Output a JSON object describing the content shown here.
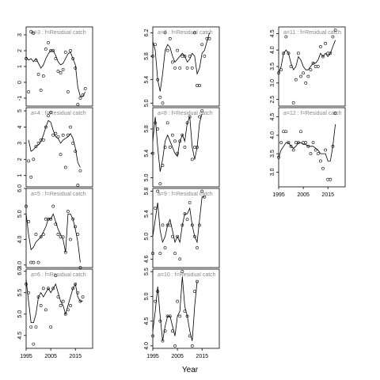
{
  "xlabel": "Year",
  "chart_data": [
    {
      "type": "scatter",
      "title": "a=3 : f=Residual catch",
      "xlim": [
        1995,
        2022
      ],
      "ylim": [
        -1.5,
        3.5
      ],
      "yticks": [
        -1,
        0,
        1,
        2,
        3
      ],
      "x": [
        1995,
        1996,
        1997,
        1998,
        1999,
        2000,
        2001,
        2002,
        2003,
        2004,
        2005,
        2006,
        2007,
        2008,
        2009,
        2010,
        2011,
        2012,
        2013,
        2014,
        2015,
        2016,
        2017,
        2018,
        2019,
        2020
      ],
      "points": [
        1.5,
        -0.6,
        3.2,
        3.1,
        1.4,
        0.5,
        -0.5,
        0.4,
        2.1,
        2.5,
        2.0,
        2.0,
        1.5,
        0.7,
        0.6,
        0.8,
        1.9,
        -0.6,
        2.0,
        1.5,
        0.9,
        -1.4,
        -1.0,
        -0.8,
        -0.4,
        null
      ],
      "fit": [
        1.6,
        1.4,
        1.5,
        1.3,
        1.5,
        1.2,
        0.9,
        1.1,
        1.5,
        1.8,
        2.0,
        2.0,
        1.7,
        1.3,
        1.1,
        1.2,
        1.5,
        1.8,
        1.9,
        1.5,
        1.1,
        -0.3,
        -0.9,
        -0.9,
        -0.6,
        null
      ]
    },
    {
      "type": "scatter",
      "title": "a=7 : f=Residual catch",
      "xlim": [
        1995,
        2022
      ],
      "ylim": [
        4.95,
        6.3
      ],
      "yticks": [
        5.0,
        5.4,
        5.8,
        6.2
      ],
      "x": [
        1995,
        1996,
        1997,
        1998,
        1999,
        2000,
        2001,
        2002,
        2003,
        2004,
        2005,
        2006,
        2007,
        2008,
        2009,
        2010,
        2011,
        2012,
        2013,
        2014,
        2015,
        2016,
        2017,
        2018,
        2019,
        2020
      ],
      "points": [
        5.8,
        6.0,
        5.4,
        5.1,
        5.0,
        6.2,
        5.9,
        6.1,
        5.7,
        5.6,
        5.9,
        5.6,
        5.8,
        5.8,
        5.6,
        5.8,
        5.6,
        6.2,
        5.3,
        5.3,
        6.0,
        5.8,
        6.1,
        6.1,
        null,
        null
      ],
      "fit": [
        6.05,
        5.9,
        5.4,
        5.2,
        5.5,
        5.9,
        6.0,
        5.95,
        5.8,
        5.7,
        5.75,
        5.8,
        5.85,
        5.8,
        5.7,
        5.75,
        5.85,
        5.8,
        5.5,
        5.6,
        5.85,
        5.9,
        6.05,
        6.2,
        null,
        null
      ]
    },
    {
      "type": "scatter",
      "title": "a=11 : f=Residual catch",
      "xlim": [
        1995,
        2022
      ],
      "ylim": [
        2.3,
        4.7
      ],
      "yticks": [
        2.5,
        3.0,
        3.5,
        4.0,
        4.5
      ],
      "x": [
        1995,
        1996,
        1997,
        1998,
        1999,
        2000,
        2001,
        2002,
        2003,
        2004,
        2005,
        2006,
        2007,
        2008,
        2009,
        2010,
        2011,
        2012,
        2013,
        2014,
        2015,
        2016,
        2017,
        2018,
        2019,
        2020
      ],
      "points": [
        3.3,
        3.4,
        3.9,
        4.4,
        3.9,
        3.5,
        2.4,
        3.1,
        3.9,
        3.2,
        3.3,
        3.0,
        3.2,
        3.4,
        3.6,
        3.5,
        3.5,
        4.1,
        3.8,
        4.2,
        3.9,
        3.9,
        4.4,
        4.6,
        null,
        null
      ],
      "fit": [
        3.3,
        3.5,
        3.9,
        4.0,
        3.9,
        3.6,
        3.4,
        3.5,
        3.8,
        3.7,
        3.5,
        3.4,
        3.4,
        3.5,
        3.6,
        3.6,
        3.7,
        3.9,
        3.8,
        3.9,
        3.8,
        3.9,
        4.1,
        4.3,
        null,
        null
      ]
    },
    {
      "type": "scatter",
      "title": "a=4 : f=Residual catch",
      "xlim": [
        1995,
        2022
      ],
      "ylim": [
        0.3,
        5.2
      ],
      "yticks": [
        1,
        2,
        3,
        4,
        5
      ],
      "x": [
        1995,
        1996,
        1997,
        1998,
        1999,
        2000,
        2001,
        2002,
        2003,
        2004,
        2005,
        2006,
        2007,
        2008,
        2009,
        2010,
        2011,
        2012,
        2013,
        2014,
        2015,
        2016,
        2017,
        2018,
        2019,
        2020
      ],
      "points": [
        null,
        1.9,
        0.9,
        2.0,
        2.8,
        3.0,
        3.2,
        3.2,
        4.0,
        4.7,
        4.9,
        3.5,
        3.6,
        3.4,
        2.3,
        3.5,
        1.5,
        3.5,
        4.0,
        3.0,
        2.5,
        0.4,
        1.3,
        null,
        null,
        null
      ],
      "fit": [
        null,
        3.2,
        2.5,
        2.6,
        2.8,
        2.9,
        3.1,
        3.5,
        4.0,
        4.4,
        4.3,
        3.8,
        3.4,
        3.3,
        3.0,
        3.2,
        3.3,
        3.4,
        3.6,
        3.3,
        2.7,
        1.8,
        1.5,
        null,
        null,
        null
      ]
    },
    {
      "type": "scatter",
      "title": "a=8 : f=Residual catch",
      "xlim": [
        1995,
        2022
      ],
      "ylim": [
        4.85,
        6.15
      ],
      "yticks": [
        5.0,
        5.4,
        5.8
      ],
      "x": [
        1995,
        1996,
        1997,
        1998,
        1999,
        2000,
        2001,
        2002,
        2003,
        2004,
        2005,
        2006,
        2007,
        2008,
        2009,
        2010,
        2011,
        2012,
        2013,
        2014,
        2015,
        2016,
        2017,
        2018,
        2019,
        2020
      ],
      "points": [
        5.4,
        5.9,
        5.8,
        4.9,
        5.2,
        5.5,
        5.9,
        5.5,
        5.7,
        5.6,
        5.4,
        5.6,
        5.7,
        5.5,
        5.9,
        6.0,
        5.3,
        5.5,
        5.5,
        6.0,
        6.1,
        null,
        null,
        null,
        null,
        null
      ],
      "fit": [
        5.6,
        6.0,
        5.5,
        5.1,
        5.3,
        5.6,
        5.7,
        5.6,
        5.5,
        5.4,
        5.35,
        5.6,
        5.7,
        5.6,
        5.9,
        6.0,
        5.5,
        5.3,
        5.5,
        5.9,
        6.05,
        null,
        null,
        null,
        null,
        null
      ]
    },
    {
      "type": "scatter",
      "title": "a=12 : f=Residual catch",
      "xlim": [
        1995,
        2022
      ],
      "ylim": [
        2.6,
        4.75
      ],
      "yticks": [
        3.0,
        3.5,
        4.0,
        4.5
      ],
      "x": [
        1995,
        1996,
        1997,
        1998,
        1999,
        2000,
        2001,
        2002,
        2003,
        2004,
        2005,
        2006,
        2007,
        2008,
        2009,
        2010,
        2011,
        2012,
        2013,
        2014,
        2015,
        2016,
        2017,
        2018,
        2019,
        2020
      ],
      "points": [
        3.4,
        3.8,
        4.1,
        4.1,
        3.8,
        3.7,
        3.6,
        3.8,
        3.8,
        4.1,
        3.8,
        3.8,
        3.7,
        3.5,
        3.8,
        3.6,
        3.5,
        3.3,
        3.1,
        3.6,
        2.8,
        2.8,
        3.7,
        4.6,
        null,
        null
      ],
      "fit": [
        3.4,
        3.6,
        3.7,
        3.8,
        3.8,
        3.7,
        3.65,
        3.7,
        3.8,
        3.8,
        3.75,
        3.75,
        3.7,
        3.7,
        3.7,
        3.65,
        3.6,
        3.5,
        3.5,
        3.5,
        3.3,
        3.3,
        3.7,
        4.3,
        null,
        null
      ]
    },
    {
      "type": "scatter",
      "title": "a=5 : f=Residual catch",
      "xlim": [
        1995,
        2022
      ],
      "ylim": [
        2.9,
        6.0
      ],
      "yticks": [
        3.0,
        4.0,
        5.0,
        6.0
      ],
      "x": [
        1995,
        1996,
        1997,
        1998,
        1999,
        2000,
        2001,
        2002,
        2003,
        2004,
        2005,
        2006,
        2007,
        2008,
        2009,
        2010,
        2011,
        2012,
        2013,
        2014,
        2015,
        2016,
        2017,
        2018,
        2019,
        2020
      ],
      "points": [
        5.3,
        4.7,
        3.1,
        3.1,
        4.2,
        3.1,
        4.1,
        4.2,
        4.8,
        4.8,
        4.8,
        5.3,
        4.6,
        4.2,
        4.1,
        4.1,
        3.5,
        5.1,
        4.0,
        4.8,
        4.5,
        4.2,
        2.9,
        null,
        null,
        null
      ],
      "fit": [
        5.0,
        4.2,
        3.6,
        3.7,
        3.9,
        4.0,
        4.1,
        4.3,
        4.5,
        4.8,
        4.8,
        5.0,
        4.7,
        4.4,
        4.2,
        4.0,
        3.5,
        5.0,
        5.0,
        4.8,
        4.4,
        3.9,
        3.1,
        null,
        null,
        null
      ]
    },
    {
      "type": "scatter",
      "title": "a=9 : f=Residual catch",
      "xlim": [
        1995,
        2022
      ],
      "ylim": [
        4.45,
        5.85
      ],
      "yticks": [
        4.6,
        5.0,
        5.4,
        5.8
      ],
      "x": [
        1995,
        1996,
        1997,
        1998,
        1999,
        2000,
        2001,
        2002,
        2003,
        2004,
        2005,
        2006,
        2007,
        2008,
        2009,
        2010,
        2011,
        2012,
        2013,
        2014,
        2015,
        2016,
        2017,
        2018,
        2019,
        2020
      ],
      "points": [
        4.7,
        5.5,
        5.8,
        4.7,
        5.2,
        4.8,
        5.2,
        5.2,
        5.0,
        4.7,
        5.0,
        4.6,
        5.2,
        5.4,
        5.3,
        5.6,
        5.2,
        5.0,
        4.8,
        5.2,
        5.8,
        5.7,
        null,
        null,
        null,
        null
      ],
      "fit": [
        5.0,
        5.3,
        5.6,
        5.1,
        4.9,
        5.0,
        5.2,
        5.3,
        5.1,
        4.9,
        5.0,
        4.9,
        5.2,
        5.4,
        5.4,
        5.5,
        5.2,
        5.0,
        4.9,
        5.3,
        5.7,
        5.7,
        null,
        null,
        null,
        null
      ]
    },
    {
      "type": "scatter",
      "title": "a=6 : f=Residual catch",
      "xlim": [
        1995,
        2022
      ],
      "ylim": [
        4.2,
        6.05
      ],
      "yticks": [
        4.5,
        5.0,
        5.5,
        6.0
      ],
      "x": [
        1995,
        1996,
        1997,
        1998,
        1999,
        2000,
        2001,
        2002,
        2003,
        2004,
        2005,
        2006,
        2007,
        2008,
        2009,
        2010,
        2011,
        2012,
        2013,
        2014,
        2015,
        2016,
        2017,
        2018,
        2019,
        2020
      ],
      "points": [
        5.7,
        5.5,
        4.7,
        4.3,
        4.7,
        5.4,
        5.2,
        5.6,
        5.1,
        5.6,
        4.7,
        5.6,
        5.9,
        5.4,
        5.2,
        5.3,
        5.0,
        5.1,
        5.2,
        5.6,
        5.7,
        5.5,
        5.3,
        5.4,
        null,
        null
      ],
      "fit": [
        5.8,
        5.3,
        4.8,
        4.8,
        5.0,
        5.4,
        5.5,
        5.4,
        5.5,
        5.6,
        5.5,
        5.6,
        5.7,
        5.5,
        5.3,
        5.2,
        5.0,
        5.2,
        5.4,
        5.6,
        5.7,
        5.4,
        5.3,
        5.3,
        null,
        null
      ]
    },
    {
      "type": "scatter",
      "title": "a=10 : f=Residual catch",
      "xlim": [
        1995,
        2022
      ],
      "ylim": [
        3.95,
        5.55
      ],
      "yticks": [
        4.0,
        4.5,
        5.0,
        5.5
      ],
      "x": [
        1995,
        1996,
        1997,
        1998,
        1999,
        2000,
        2001,
        2002,
        2003,
        2004,
        2005,
        2006,
        2007,
        2008,
        2009,
        2010,
        2011,
        2012,
        2013,
        2014,
        2015,
        2016,
        2017,
        2018,
        2019,
        2020
      ],
      "points": [
        4.2,
        4.9,
        5.1,
        4.5,
        4.1,
        4.3,
        4.6,
        4.6,
        4.3,
        4.0,
        4.9,
        4.6,
        5.5,
        4.7,
        4.6,
        4.2,
        4.0,
        5.1,
        5.3,
        null,
        null,
        null,
        null,
        null,
        null,
        null
      ],
      "fit": [
        4.3,
        4.7,
        5.2,
        4.6,
        4.1,
        4.4,
        4.6,
        4.6,
        4.4,
        4.2,
        4.6,
        4.7,
        5.4,
        4.8,
        4.6,
        4.3,
        4.1,
        4.8,
        5.3,
        null,
        null,
        null,
        null,
        null,
        null,
        null
      ]
    }
  ],
  "xticks": [
    1995,
    2005,
    2015
  ],
  "colors": {
    "points": "#000000",
    "fit": "#000000",
    "strip": "#888888"
  }
}
